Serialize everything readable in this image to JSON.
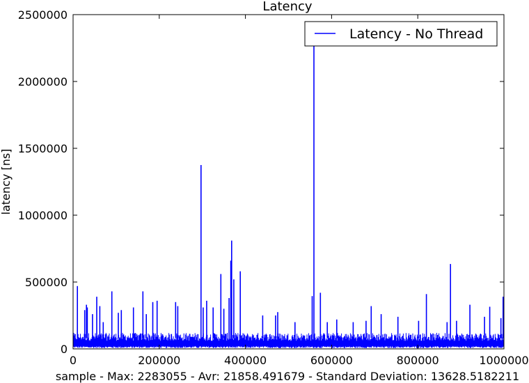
{
  "chart_data": {
    "type": "line",
    "title": "Latency",
    "xlabel": "sample - Max: 2283055 - Avr: 21858.491679 - Standard Deviation: 13628.5182211",
    "ylabel": "latency [ns]",
    "xlim": [
      0,
      1000000
    ],
    "ylim": [
      0,
      2500000
    ],
    "x_ticks": [
      0,
      200000,
      400000,
      600000,
      800000,
      1000000
    ],
    "y_ticks": [
      0,
      500000,
      1000000,
      1500000,
      2000000,
      2500000
    ],
    "x_tick_labels": [
      "0",
      "200000",
      "400000",
      "600000",
      "800000",
      "1000000"
    ],
    "y_tick_labels": [
      "0",
      "500000",
      "1000000",
      "1500000",
      "2000000",
      "2500000"
    ],
    "grid": false,
    "legend_position": "top-right",
    "series": [
      {
        "name": "Latency - No Thread",
        "color": "#0000ff",
        "baseline_band": [
          20000,
          100000
        ],
        "spikes": [
          [
            10000,
            470000
          ],
          [
            27000,
            290000
          ],
          [
            31000,
            330000
          ],
          [
            33000,
            310000
          ],
          [
            45000,
            260000
          ],
          [
            55000,
            390000
          ],
          [
            62000,
            320000
          ],
          [
            70000,
            200000
          ],
          [
            90000,
            430000
          ],
          [
            105000,
            270000
          ],
          [
            112000,
            290000
          ],
          [
            140000,
            310000
          ],
          [
            162000,
            430000
          ],
          [
            170000,
            260000
          ],
          [
            185000,
            350000
          ],
          [
            195000,
            360000
          ],
          [
            238000,
            350000
          ],
          [
            243000,
            320000
          ],
          [
            297000,
            1375000
          ],
          [
            302000,
            310000
          ],
          [
            310000,
            360000
          ],
          [
            325000,
            310000
          ],
          [
            343000,
            560000
          ],
          [
            350000,
            300000
          ],
          [
            362000,
            380000
          ],
          [
            366000,
            660000
          ],
          [
            368000,
            810000
          ],
          [
            373000,
            520000
          ],
          [
            388000,
            580000
          ],
          [
            440000,
            250000
          ],
          [
            470000,
            250000
          ],
          [
            475000,
            275000
          ],
          [
            515000,
            200000
          ],
          [
            555000,
            395000
          ],
          [
            559000,
            2283055
          ],
          [
            574000,
            420000
          ],
          [
            590000,
            200000
          ],
          [
            612000,
            220000
          ],
          [
            650000,
            200000
          ],
          [
            680000,
            210000
          ],
          [
            692000,
            320000
          ],
          [
            715000,
            260000
          ],
          [
            754000,
            240000
          ],
          [
            802000,
            210000
          ],
          [
            820000,
            410000
          ],
          [
            868000,
            200000
          ],
          [
            876000,
            635000
          ],
          [
            890000,
            210000
          ],
          [
            921000,
            330000
          ],
          [
            955000,
            240000
          ],
          [
            967000,
            315000
          ],
          [
            993000,
            230000
          ],
          [
            998000,
            390000
          ]
        ]
      }
    ]
  }
}
